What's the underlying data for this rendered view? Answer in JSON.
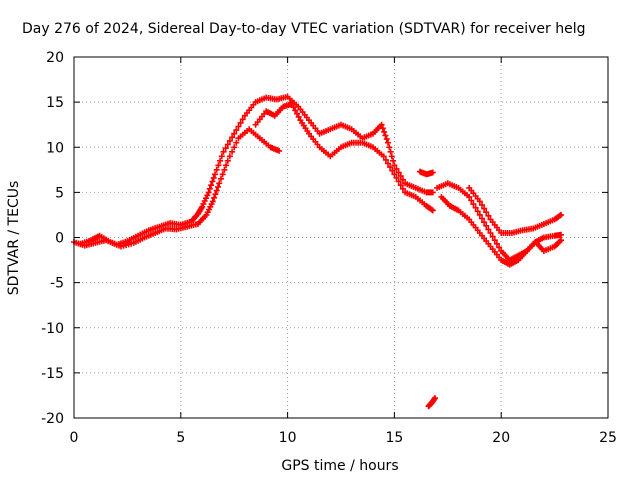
{
  "chart_data": {
    "type": "scatter",
    "title": "Day 276 of 2024, Sidereal Day-to-day VTEC variation (SDTVAR) for receiver helg",
    "xlabel": "GPS time / hours",
    "ylabel": "SDTVAR / TECUs",
    "xlim": [
      0,
      25
    ],
    "ylim": [
      -20,
      20
    ],
    "xticks": [
      0,
      5,
      10,
      15,
      20,
      25
    ],
    "yticks": [
      -20,
      -15,
      -10,
      -5,
      0,
      5,
      10,
      15,
      20
    ],
    "grid": true,
    "marker": "plus",
    "series": [
      {
        "name": "SDTVAR",
        "color": "#ff0000",
        "tracks": [
          [
            [
              0.0,
              -0.5
            ],
            [
              0.5,
              -0.9
            ],
            [
              1.0,
              -0.6
            ],
            [
              1.5,
              -0.3
            ],
            [
              2.0,
              -0.8
            ],
            [
              2.5,
              -0.4
            ],
            [
              3.0,
              0.2
            ],
            [
              3.5,
              0.8
            ],
            [
              4.0,
              1.2
            ],
            [
              4.5,
              1.6
            ],
            [
              5.0,
              1.4
            ],
            [
              5.5,
              1.8
            ],
            [
              5.8,
              2.6
            ],
            [
              6.0,
              3.4
            ],
            [
              6.3,
              5.0
            ],
            [
              6.6,
              7.0
            ],
            [
              7.0,
              9.5
            ],
            [
              7.5,
              11.5
            ],
            [
              8.0,
              13.5
            ],
            [
              8.5,
              15.0
            ],
            [
              9.0,
              15.5
            ],
            [
              9.5,
              15.3
            ],
            [
              10.0,
              15.6
            ],
            [
              10.5,
              14.5
            ],
            [
              11.0,
              13.0
            ],
            [
              11.5,
              11.5
            ],
            [
              12.0,
              12.0
            ],
            [
              12.5,
              12.5
            ],
            [
              13.0,
              12.0
            ],
            [
              13.5,
              11.0
            ],
            [
              14.0,
              11.5
            ],
            [
              14.4,
              12.5
            ],
            [
              14.7,
              10.5
            ],
            [
              15.0,
              8.0
            ],
            [
              15.5,
              6.0
            ],
            [
              16.0,
              5.5
            ],
            [
              16.5,
              5.0
            ],
            [
              16.8,
              5.0
            ]
          ],
          [
            [
              0.3,
              -0.7
            ],
            [
              0.8,
              -0.3
            ],
            [
              1.2,
              0.2
            ],
            [
              1.7,
              -0.5
            ],
            [
              2.2,
              -1.0
            ],
            [
              2.8,
              -0.6
            ],
            [
              3.3,
              0.0
            ],
            [
              3.8,
              0.5
            ],
            [
              4.3,
              1.0
            ],
            [
              4.8,
              0.9
            ],
            [
              5.3,
              1.2
            ],
            [
              5.8,
              1.5
            ],
            [
              6.2,
              2.5
            ],
            [
              6.5,
              4.0
            ],
            [
              6.8,
              6.0
            ],
            [
              7.2,
              8.5
            ],
            [
              7.7,
              11.0
            ],
            [
              8.2,
              12.0
            ],
            [
              8.7,
              11.0
            ],
            [
              9.2,
              10.0
            ],
            [
              9.6,
              9.6
            ]
          ],
          [
            [
              8.5,
              12.5
            ],
            [
              9.0,
              14.0
            ],
            [
              9.4,
              13.5
            ],
            [
              9.8,
              14.5
            ],
            [
              10.2,
              14.8
            ],
            [
              10.6,
              13.0
            ],
            [
              11.0,
              11.5
            ],
            [
              11.5,
              10.0
            ],
            [
              12.0,
              9.0
            ],
            [
              12.5,
              10.0
            ],
            [
              13.0,
              10.5
            ],
            [
              13.5,
              10.5
            ],
            [
              14.0,
              10.0
            ],
            [
              14.5,
              9.0
            ],
            [
              15.0,
              7.0
            ],
            [
              15.5,
              5.0
            ],
            [
              16.0,
              4.5
            ],
            [
              16.5,
              3.5
            ],
            [
              16.8,
              3.0
            ]
          ],
          [
            [
              16.2,
              7.3
            ],
            [
              16.5,
              7.0
            ],
            [
              16.8,
              7.2
            ]
          ],
          [
            [
              17.0,
              5.5
            ],
            [
              17.5,
              6.0
            ],
            [
              18.0,
              5.5
            ],
            [
              18.5,
              4.5
            ],
            [
              19.0,
              2.5
            ],
            [
              19.5,
              0.5
            ],
            [
              20.0,
              -1.5
            ],
            [
              20.4,
              -2.5
            ],
            [
              20.8,
              -2.0
            ],
            [
              21.2,
              -1.5
            ],
            [
              21.6,
              -0.5
            ],
            [
              22.0,
              0.0
            ],
            [
              22.5,
              0.2
            ],
            [
              22.8,
              0.3
            ]
          ],
          [
            [
              17.2,
              4.5
            ],
            [
              17.6,
              3.5
            ],
            [
              18.0,
              3.0
            ],
            [
              18.5,
              2.0
            ],
            [
              19.0,
              0.5
            ],
            [
              19.5,
              -1.0
            ],
            [
              20.0,
              -2.5
            ],
            [
              20.4,
              -3.0
            ],
            [
              20.8,
              -2.5
            ],
            [
              21.2,
              -1.5
            ],
            [
              21.6,
              -0.5
            ],
            [
              22.0,
              -1.5
            ],
            [
              22.5,
              -1.0
            ],
            [
              22.8,
              -0.3
            ]
          ],
          [
            [
              18.5,
              5.5
            ],
            [
              19.0,
              4.0
            ],
            [
              19.5,
              2.0
            ],
            [
              20.0,
              0.5
            ],
            [
              20.5,
              0.5
            ],
            [
              21.0,
              0.8
            ],
            [
              21.5,
              1.0
            ],
            [
              22.0,
              1.5
            ],
            [
              22.5,
              2.0
            ],
            [
              22.8,
              2.5
            ]
          ],
          [
            [
              16.6,
              -18.7
            ],
            [
              16.75,
              -18.3
            ],
            [
              16.9,
              -17.8
            ]
          ]
        ]
      }
    ]
  }
}
